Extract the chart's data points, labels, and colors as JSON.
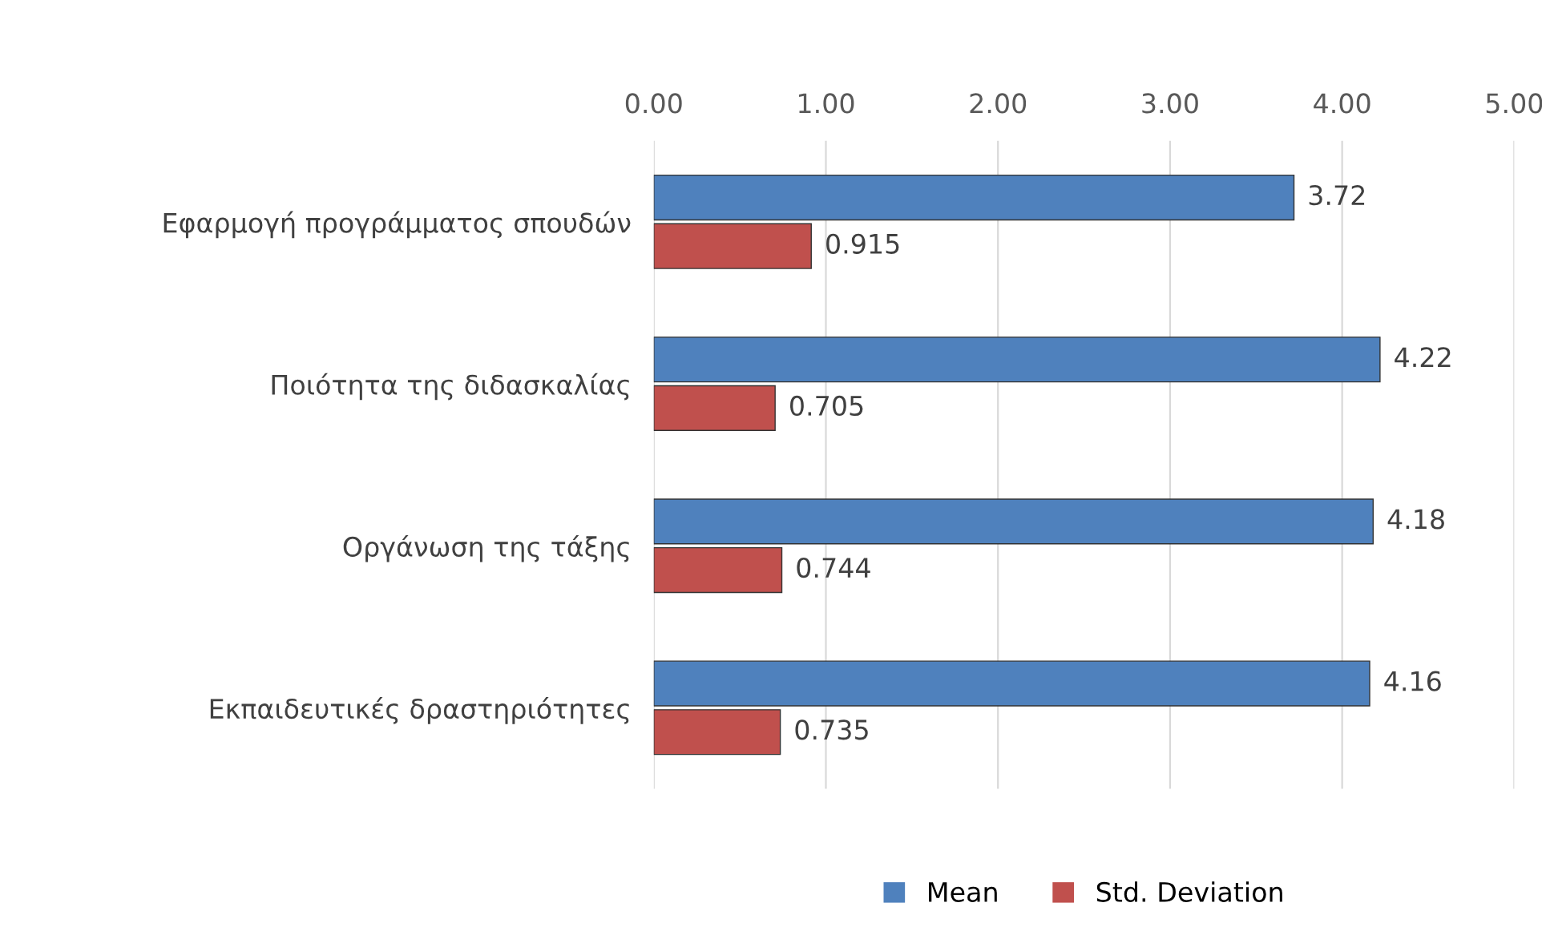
{
  "chart_data": {
    "type": "bar",
    "orientation": "horizontal",
    "categories": [
      "Εφαρμογή προγράμματος σπουδών",
      "Ποιότητα της διδασκαλίας",
      "Οργάνωση της τάξης",
      "Εκπαιδευτικές δραστηριότητες"
    ],
    "series": [
      {
        "name": "Mean",
        "color": "#4f81bd",
        "values": [
          3.72,
          4.22,
          4.18,
          4.16
        ]
      },
      {
        "name": "Std. Deviation",
        "color": "#c0504d",
        "values": [
          0.915,
          0.705,
          0.744,
          0.735
        ]
      }
    ],
    "xlim": [
      0,
      5
    ],
    "xticks": [
      {
        "value": 0,
        "label": "0.00"
      },
      {
        "value": 1,
        "label": "1.00"
      },
      {
        "value": 2,
        "label": "2.00"
      },
      {
        "value": 3,
        "label": "3.00"
      },
      {
        "value": 4,
        "label": "4.00"
      },
      {
        "value": 5,
        "label": "5.00"
      }
    ],
    "grid": "x",
    "legend": "bottom",
    "data_labels": true
  }
}
